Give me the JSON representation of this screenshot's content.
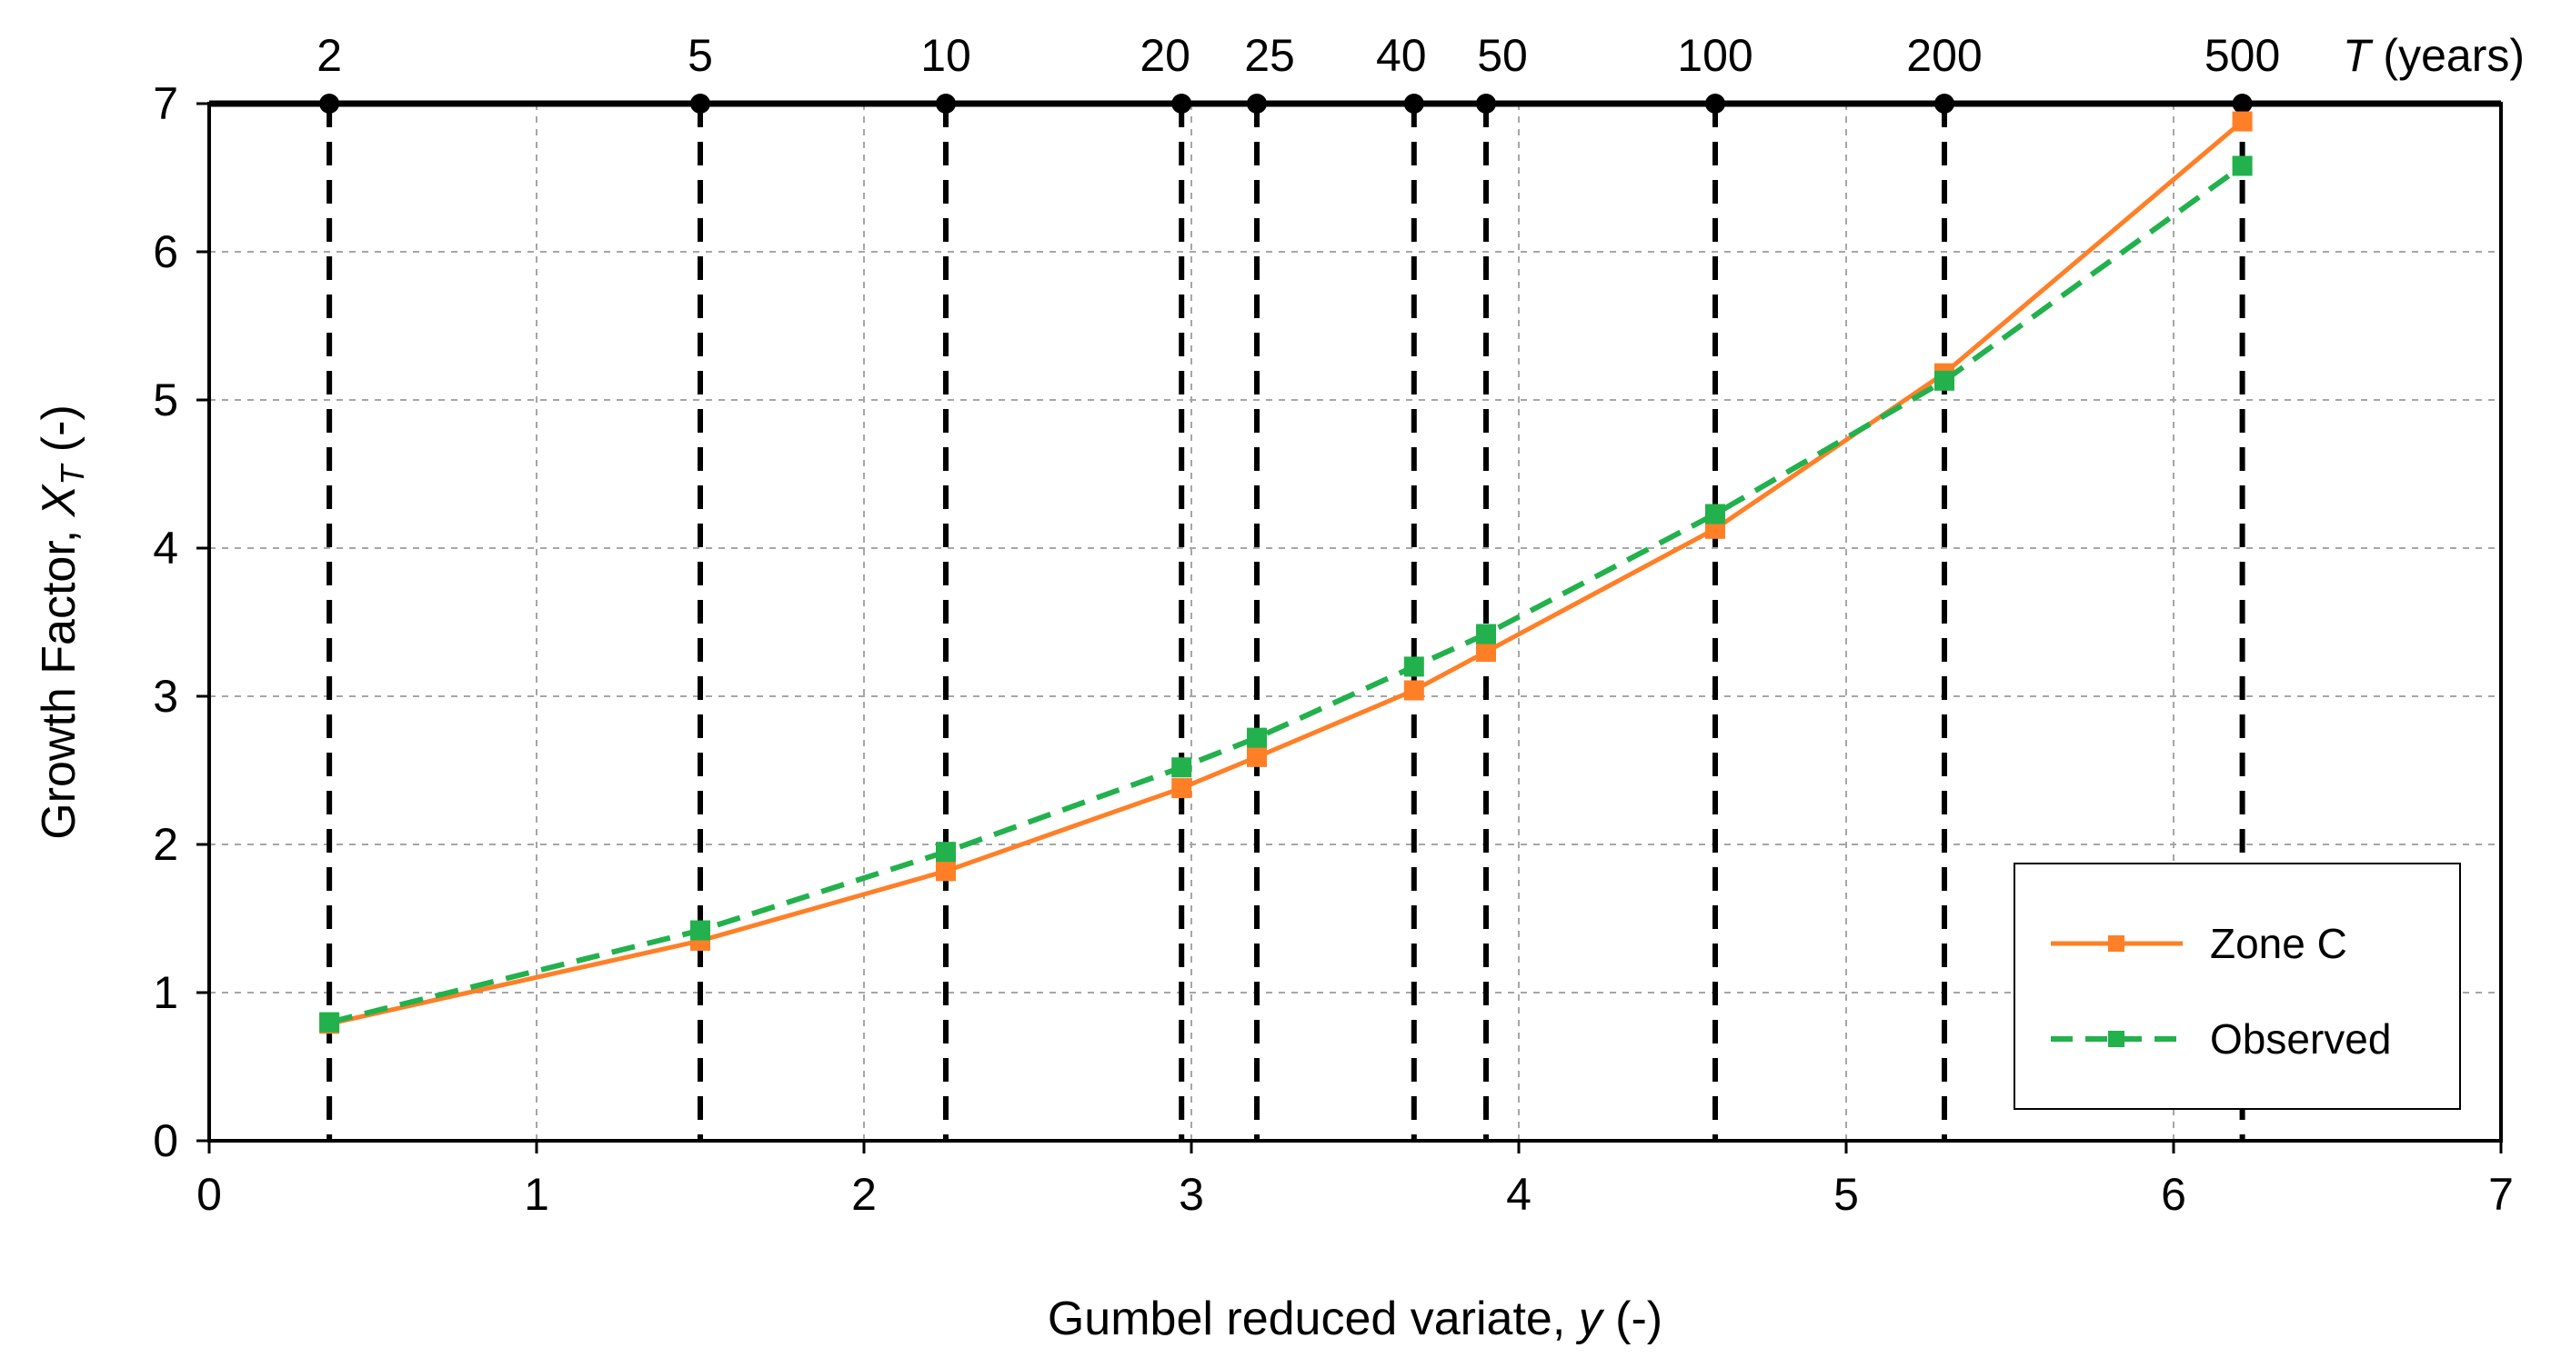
{
  "chart_data": {
    "type": "line",
    "xlabel_text": "Gumbel reduced variate, ",
    "xlabel_var": "y",
    "xlabel_unit": " (-)",
    "ylabel_text": "Growth Factor, ",
    "ylabel_var": "X",
    "ylabel_sub": "T",
    "ylabel_unit": " (-)",
    "xlim": [
      0,
      7
    ],
    "ylim": [
      0,
      7
    ],
    "x_ticks": [
      "0",
      "1",
      "2",
      "3",
      "4",
      "5",
      "6",
      "7"
    ],
    "y_ticks": [
      "0",
      "1",
      "2",
      "3",
      "4",
      "5",
      "6",
      "7"
    ],
    "grid": true,
    "top_axis_title_var": "T",
    "top_axis_title_unit": " (years)",
    "return_periods": [
      {
        "label": "2",
        "y": 0.367
      },
      {
        "label": "5",
        "y": 1.5
      },
      {
        "label": "10",
        "y": 2.25
      },
      {
        "label": "20",
        "y": 2.97
      },
      {
        "label": "25",
        "y": 3.2
      },
      {
        "label": "40",
        "y": 3.68
      },
      {
        "label": "50",
        "y": 3.9
      },
      {
        "label": "100",
        "y": 4.6
      },
      {
        "label": "200",
        "y": 5.3
      },
      {
        "label": "500",
        "y": 6.21
      }
    ],
    "legend_position": "bottom-right",
    "series": [
      {
        "name": "Zone C",
        "color": "#ff7f27",
        "line": "solid",
        "x": [
          0.367,
          1.5,
          2.25,
          2.97,
          3.2,
          3.68,
          3.9,
          4.6,
          5.3,
          6.21
        ],
        "y": [
          0.79,
          1.35,
          1.82,
          2.38,
          2.59,
          3.04,
          3.3,
          4.13,
          5.18,
          6.88
        ]
      },
      {
        "name": "Observed",
        "color": "#22b14c",
        "line": "dashed",
        "x": [
          0.367,
          1.5,
          2.25,
          2.97,
          3.2,
          3.68,
          3.9,
          4.6,
          5.3,
          6.21
        ],
        "y": [
          0.8,
          1.42,
          1.95,
          2.52,
          2.72,
          3.2,
          3.42,
          4.23,
          5.13,
          6.58
        ]
      }
    ]
  }
}
